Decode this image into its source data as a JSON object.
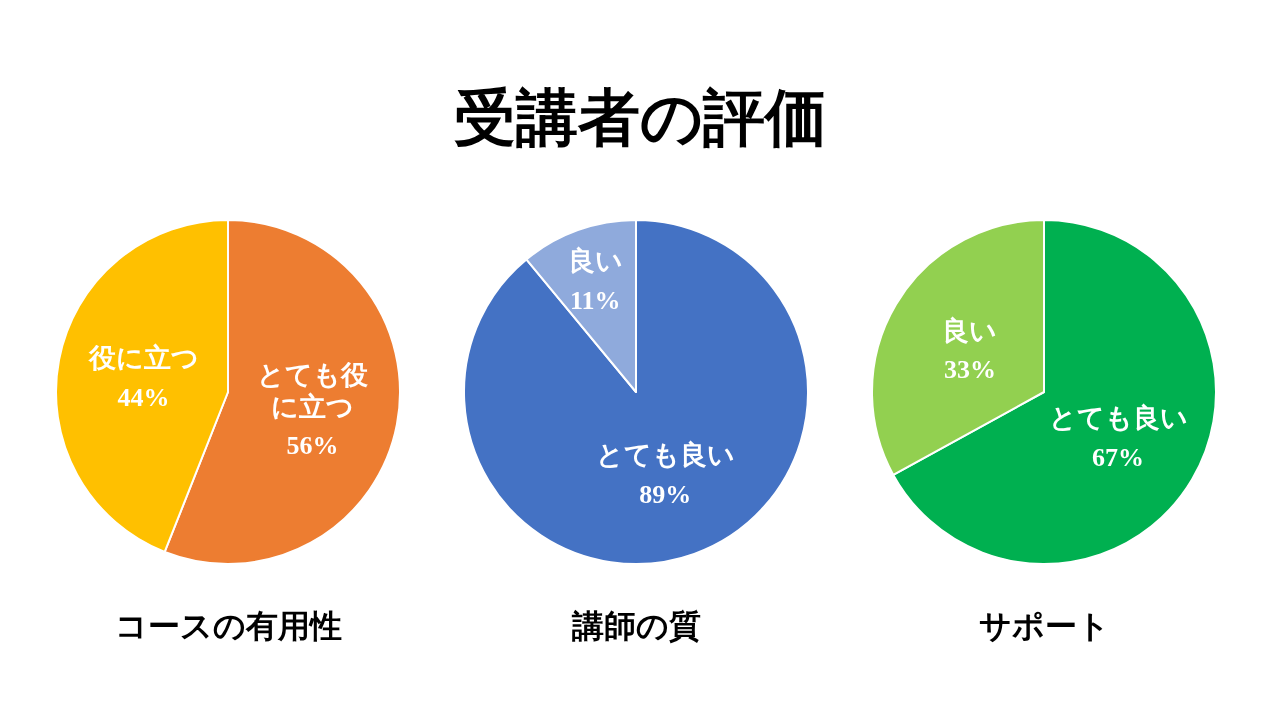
{
  "chart_data": [
    {
      "type": "pie",
      "title": "コースの有用性",
      "annotations": [
        "受講者の評価"
      ],
      "categories": [
        "とても役に立つ",
        "役に立つ"
      ],
      "values": [
        56,
        44
      ],
      "colors": [
        "#ed7d31",
        "#ffc000"
      ],
      "value_labels": [
        "56%",
        "44%"
      ]
    },
    {
      "type": "pie",
      "title": "講師の質",
      "categories": [
        "とても良い",
        "良い"
      ],
      "values": [
        89,
        11
      ],
      "colors": [
        "#4472c4",
        "#8faadc"
      ],
      "value_labels": [
        "89%",
        "11%"
      ]
    },
    {
      "type": "pie",
      "title": "サポート",
      "categories": [
        "とても良い",
        "良い"
      ],
      "values": [
        67,
        33
      ],
      "colors": [
        "#00b050",
        "#92d050"
      ],
      "value_labels": [
        "67%",
        "33%"
      ]
    }
  ]
}
